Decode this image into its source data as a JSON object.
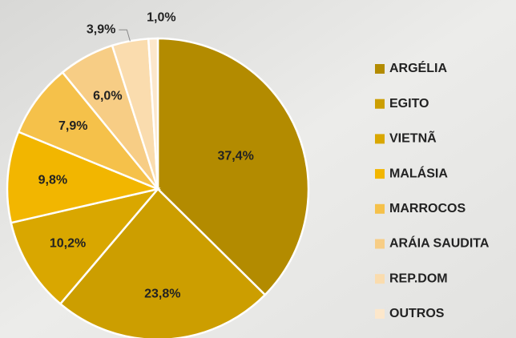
{
  "chart_data": {
    "type": "pie",
    "categories": [
      "ARGÉLIA",
      "EGITO",
      "VIETNÃ",
      "MALÁSIA",
      "MARROCOS",
      "ARÁIA SAUDITA",
      "REP.DOM",
      "OUTROS"
    ],
    "values": [
      37.4,
      23.8,
      10.2,
      9.8,
      7.9,
      6.0,
      3.9,
      1.0
    ],
    "value_labels": [
      "37,4%",
      "23,8%",
      "10,2%",
      "9,8%",
      "7,9%",
      "6,0%",
      "3,9%",
      "1,0%"
    ],
    "colors": [
      "#b38b00",
      "#cc9e00",
      "#d9a700",
      "#f2b600",
      "#f5c14a",
      "#f7cd85",
      "#fadcae",
      "#fce7cb"
    ],
    "legend": "right"
  }
}
